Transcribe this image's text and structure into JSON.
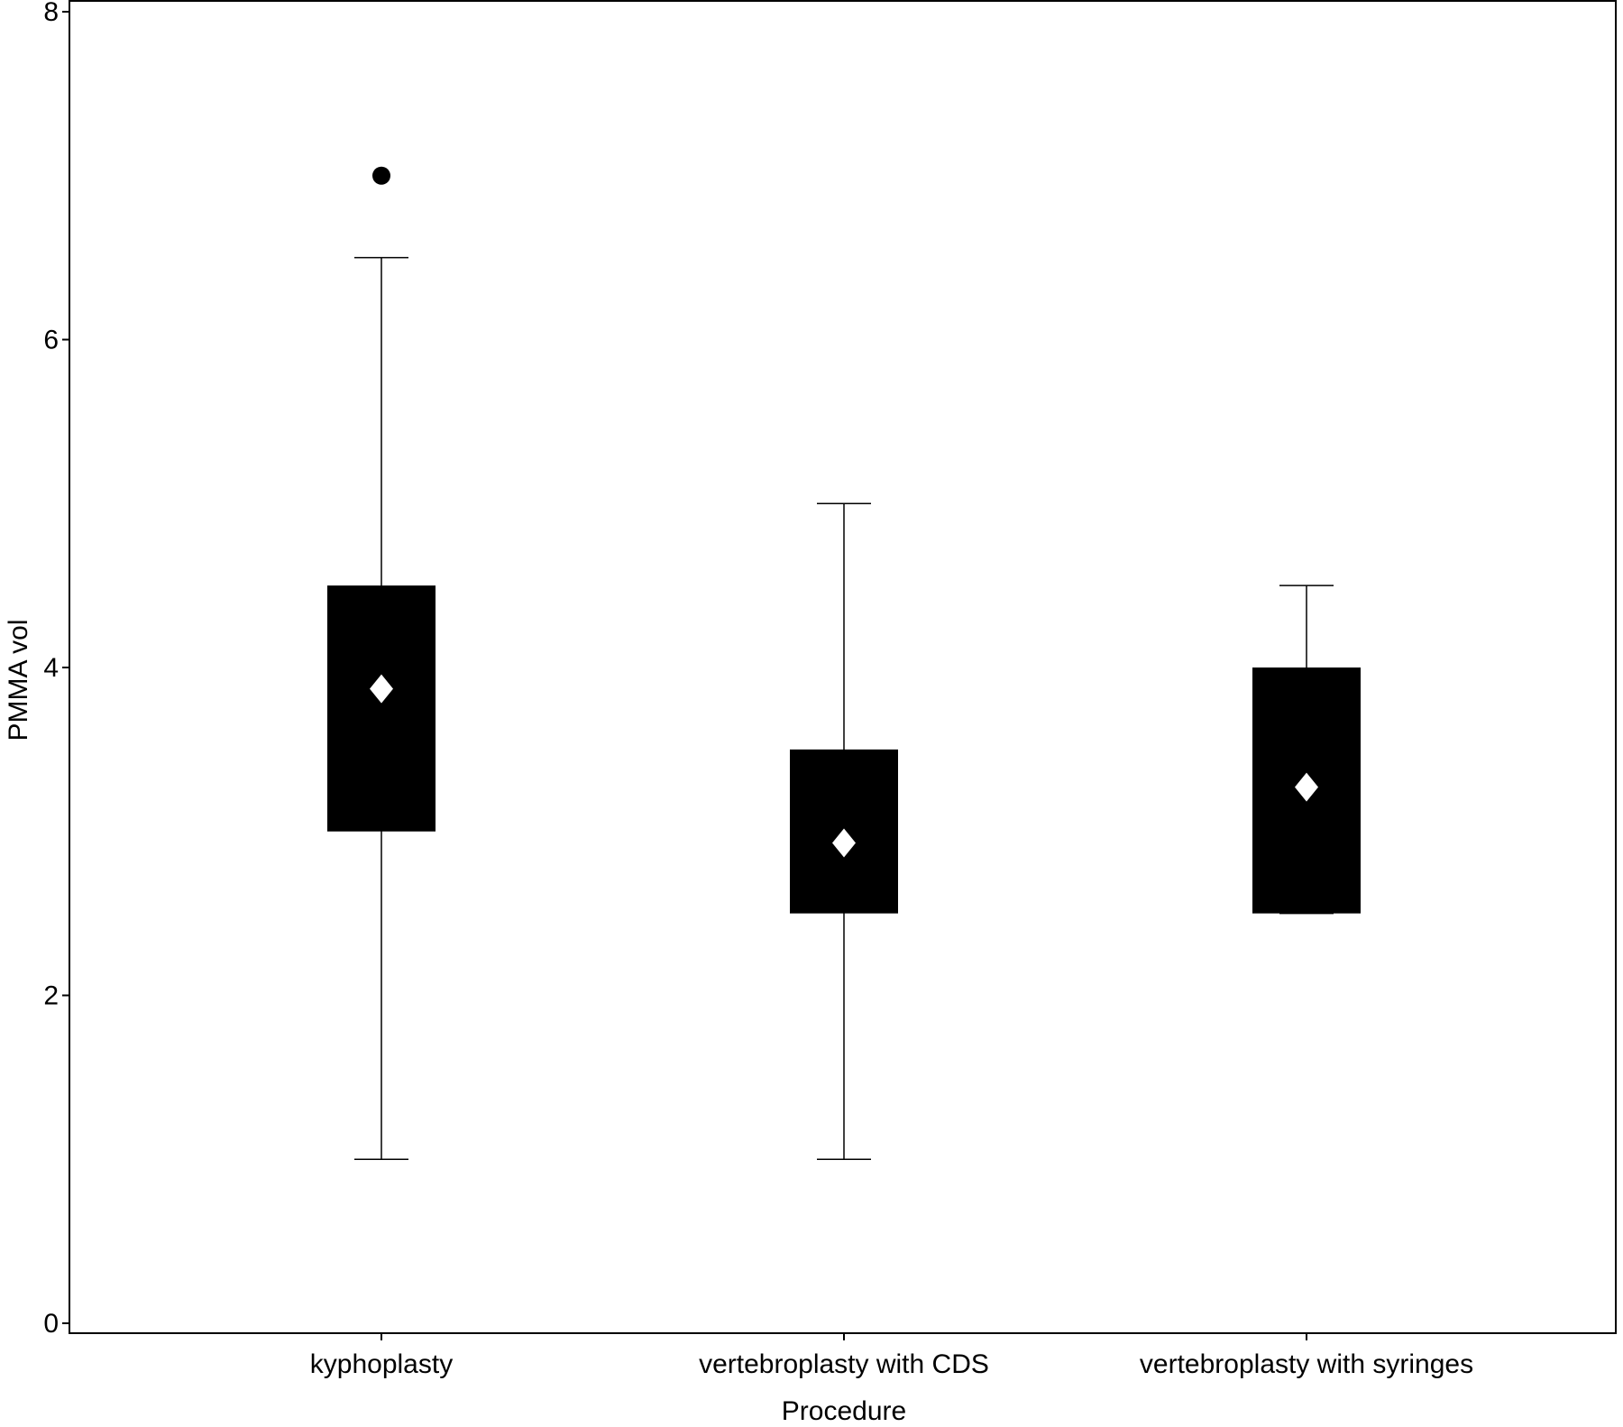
{
  "chart_data": {
    "type": "boxplot",
    "title": "",
    "xlabel": "Procedure",
    "ylabel": "PMMA vol",
    "ylim": [
      0,
      8
    ],
    "yticks": [
      0,
      2,
      4,
      6,
      8
    ],
    "grid": false,
    "categories": [
      "kyphoplasty",
      "vertebroplasty with CDS",
      "vertebroplasty with syringes"
    ],
    "boxes": [
      {
        "category": "kyphoplasty",
        "whisker_low": 1.0,
        "q1": 3.0,
        "q3": 4.5,
        "whisker_high": 6.5,
        "mean": 3.87,
        "outliers": [
          7.0
        ]
      },
      {
        "category": "vertebroplasty with CDS",
        "whisker_low": 1.0,
        "q1": 2.5,
        "q3": 3.5,
        "whisker_high": 5.0,
        "mean": 2.93,
        "outliers": []
      },
      {
        "category": "vertebroplasty with syringes",
        "whisker_low": 2.5,
        "q1": 2.5,
        "q3": 4.0,
        "whisker_high": 4.5,
        "mean": 3.27,
        "outliers": []
      }
    ],
    "colors": {
      "box": "#000000",
      "mean_marker": "#ffffff",
      "whisker": "#000000",
      "outlier": "#000000",
      "axis": "#000000"
    }
  }
}
